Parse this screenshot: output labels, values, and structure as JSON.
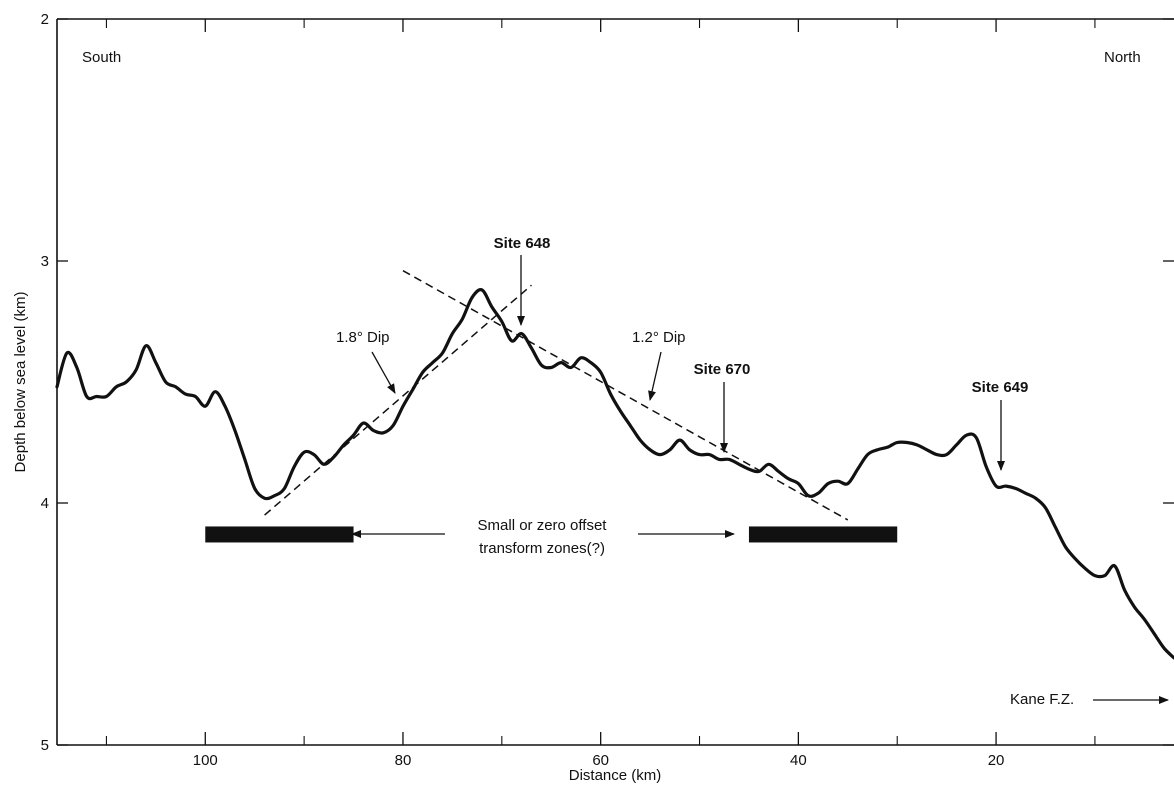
{
  "chart_data": {
    "type": "line",
    "title": "",
    "xlabel": "Distance (km)",
    "ylabel": "Depth below sea level (km)",
    "xlim": [
      115,
      2
    ],
    "ylim": [
      2,
      5
    ],
    "x_ticks": [
      100,
      80,
      60,
      40,
      20
    ],
    "x_tick_labels": [
      "100",
      "80",
      "60",
      "40",
      "20"
    ],
    "x_minor_ticks": [
      110,
      90,
      70,
      50,
      30,
      10
    ],
    "y_ticks": [
      2,
      3,
      4,
      5
    ],
    "y_tick_labels": [
      "2",
      "3",
      "4",
      "5"
    ],
    "grid": false,
    "line_color": "#111111",
    "series": [
      {
        "x": [
          115,
          114,
          113,
          112,
          111,
          110,
          109,
          108,
          107,
          106,
          105,
          104,
          103,
          102,
          101,
          100,
          99,
          98,
          97,
          96,
          95,
          94,
          93,
          92,
          91,
          90,
          89,
          88,
          87,
          86,
          85,
          84,
          83,
          82,
          81,
          80,
          79,
          78,
          77,
          76,
          75,
          74,
          73,
          72,
          71,
          70,
          69,
          68,
          67,
          66,
          65,
          64,
          63,
          62,
          61,
          60,
          59,
          58,
          57,
          56,
          55,
          54,
          53,
          52,
          51,
          50,
          49,
          48,
          47,
          46,
          45,
          44,
          43,
          42,
          41,
          40,
          39,
          38,
          37,
          36,
          35,
          34,
          33,
          32,
          31,
          30,
          29,
          28,
          27,
          26,
          25,
          24,
          23,
          22,
          21,
          20,
          19,
          18,
          17,
          16,
          15,
          14,
          13,
          12,
          11,
          10,
          9,
          8,
          7,
          6,
          5,
          4,
          3,
          2
        ],
        "values": [
          3.52,
          3.38,
          3.44,
          3.56,
          3.56,
          3.56,
          3.52,
          3.5,
          3.45,
          3.35,
          3.42,
          3.5,
          3.52,
          3.55,
          3.56,
          3.6,
          3.54,
          3.6,
          3.7,
          3.82,
          3.94,
          3.98,
          3.97,
          3.94,
          3.85,
          3.79,
          3.8,
          3.84,
          3.81,
          3.76,
          3.72,
          3.67,
          3.7,
          3.71,
          3.68,
          3.6,
          3.53,
          3.46,
          3.42,
          3.38,
          3.3,
          3.24,
          3.15,
          3.12,
          3.19,
          3.25,
          3.33,
          3.3,
          3.36,
          3.43,
          3.44,
          3.42,
          3.44,
          3.4,
          3.42,
          3.46,
          3.55,
          3.62,
          3.68,
          3.74,
          3.78,
          3.8,
          3.78,
          3.74,
          3.78,
          3.8,
          3.8,
          3.82,
          3.82,
          3.84,
          3.86,
          3.87,
          3.84,
          3.87,
          3.9,
          3.92,
          3.97,
          3.96,
          3.92,
          3.91,
          3.92,
          3.86,
          3.8,
          3.78,
          3.77,
          3.75,
          3.75,
          3.76,
          3.78,
          3.8,
          3.8,
          3.76,
          3.72,
          3.73,
          3.85,
          3.93,
          3.93,
          3.94,
          3.96,
          3.98,
          4.02,
          4.1,
          4.18,
          4.23,
          4.27,
          4.3,
          4.3,
          4.26,
          4.36,
          4.43,
          4.48,
          4.54,
          4.6,
          4.64
        ]
      }
    ],
    "dip_lines": [
      {
        "x": [
          94,
          67
        ],
        "y": [
          4.05,
          3.1
        ]
      },
      {
        "x": [
          80,
          35
        ],
        "y": [
          3.04,
          4.07
        ]
      }
    ],
    "transform_zone_bars": [
      {
        "x": [
          100,
          85
        ],
        "y": 4.13
      },
      {
        "x": [
          45,
          30
        ],
        "y": 4.13
      }
    ]
  },
  "annotations": {
    "south": "South",
    "north": "North",
    "site648": "Site 648",
    "site670": "Site 670",
    "site649": "Site 649",
    "dip18": "1.8° Dip",
    "dip12": "1.2° Dip",
    "transform_line1": "Small or zero offset",
    "transform_line2": "transform zones(?)",
    "kane": "Kane F.Z."
  }
}
